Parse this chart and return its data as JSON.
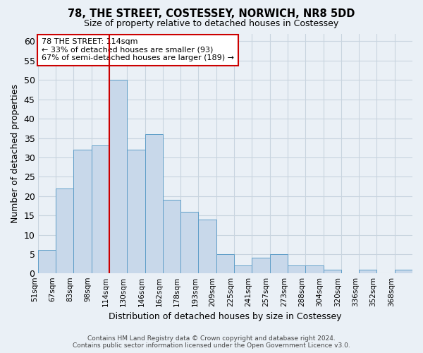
{
  "title": "78, THE STREET, COSTESSEY, NORWICH, NR8 5DD",
  "subtitle": "Size of property relative to detached houses in Costessey",
  "xlabel": "Distribution of detached houses by size in Costessey",
  "ylabel": "Number of detached properties",
  "bar_labels": [
    "51sqm",
    "67sqm",
    "83sqm",
    "98sqm",
    "114sqm",
    "130sqm",
    "146sqm",
    "162sqm",
    "178sqm",
    "193sqm",
    "209sqm",
    "225sqm",
    "241sqm",
    "257sqm",
    "273sqm",
    "288sqm",
    "304sqm",
    "320sqm",
    "336sqm",
    "352sqm",
    "368sqm"
  ],
  "bar_values": [
    6,
    22,
    32,
    33,
    50,
    32,
    36,
    19,
    16,
    14,
    5,
    2,
    4,
    5,
    2,
    2,
    1,
    0,
    1,
    0,
    1
  ],
  "bar_color": "#c8d8ea",
  "bar_edge_color": "#5f9ec8",
  "highlight_index": 4,
  "highlight_line_color": "#cc0000",
  "ylim": [
    0,
    62
  ],
  "yticks": [
    0,
    5,
    10,
    15,
    20,
    25,
    30,
    35,
    40,
    45,
    50,
    55,
    60
  ],
  "grid_color": "#c8d4df",
  "bg_color": "#eaf0f6",
  "plot_bg_color": "#eaf0f6",
  "annotation_text": "78 THE STREET: 114sqm\n← 33% of detached houses are smaller (93)\n67% of semi-detached houses are larger (189) →",
  "annotation_box_color": "#ffffff",
  "annotation_box_edge": "#cc0000",
  "footer_line1": "Contains HM Land Registry data © Crown copyright and database right 2024.",
  "footer_line2": "Contains public sector information licensed under the Open Government Licence v3.0."
}
